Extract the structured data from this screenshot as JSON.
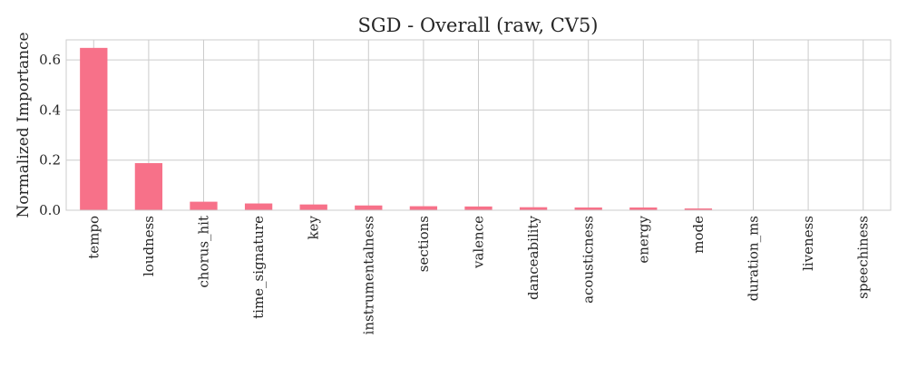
{
  "chart_data": {
    "type": "bar",
    "title": "SGD - Overall (raw, CV5)",
    "xlabel": "",
    "ylabel": "Normalized Importance",
    "categories": [
      "tempo",
      "loudness",
      "chorus_hit",
      "time_signature",
      "key",
      "instrumentalness",
      "sections",
      "valence",
      "danceability",
      "acousticness",
      "energy",
      "mode",
      "duration_ms",
      "liveness",
      "speechiness"
    ],
    "values": [
      0.648,
      0.188,
      0.034,
      0.027,
      0.023,
      0.019,
      0.016,
      0.015,
      0.012,
      0.011,
      0.011,
      0.007,
      0.001,
      0.001,
      0.001
    ],
    "ylim": [
      0,
      0.68
    ],
    "yticks": [
      0.0,
      0.2,
      0.4,
      0.6
    ],
    "ytick_labels": [
      "0.0",
      "0.2",
      "0.4",
      "0.6"
    ],
    "bar_color": "#f77189",
    "grid": true,
    "legend": "none"
  }
}
